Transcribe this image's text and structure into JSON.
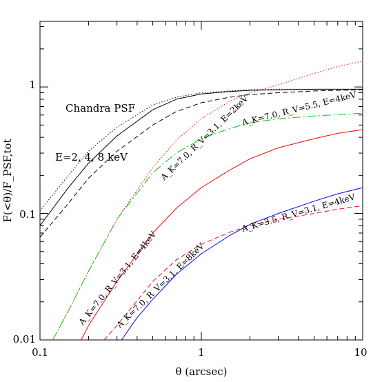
{
  "chart_data": {
    "type": "line",
    "title": "",
    "xlabel": "θ (arcsec)",
    "ylabel": "F(<θ)/F_PSF,tot",
    "xscale": "log",
    "yscale": "log",
    "xlim": [
      0.1,
      10
    ],
    "ylim": [
      0.01,
      3.3
    ],
    "xticks": [
      "0.1",
      "1",
      "10"
    ],
    "yticks": [
      "0.01",
      "0.1",
      "1"
    ],
    "annotations": {
      "psf_title": "Chandra PSF",
      "energies": "E=2, 4, 8 keV",
      "c1": "A_K=7.0, R_V=3.1, E=2keV",
      "c2": "A_K=7.0, R_V=5.5, E=4keV",
      "c3": "A_K=7.0, R_V=3.1, E=4keV",
      "c4": "A_K=7.0, R_V=3.1, E=8keV",
      "c5": "A_K=3.5, R_V=3.1, E=4keV"
    },
    "series": [
      {
        "name": "E=2keV",
        "color": "#000000",
        "dash": "dotted",
        "points": [
          [
            0.1,
            0.105
          ],
          [
            0.15,
            0.2
          ],
          [
            0.2,
            0.31
          ],
          [
            0.3,
            0.48
          ],
          [
            0.5,
            0.72
          ],
          [
            0.7,
            0.83
          ],
          [
            1,
            0.9
          ],
          [
            1.5,
            0.93
          ],
          [
            2,
            0.95
          ],
          [
            3,
            0.96
          ],
          [
            5,
            0.96
          ],
          [
            10,
            0.96
          ]
        ]
      },
      {
        "name": "E=4keV",
        "color": "#000000",
        "dash": "solid",
        "points": [
          [
            0.1,
            0.08
          ],
          [
            0.15,
            0.16
          ],
          [
            0.2,
            0.25
          ],
          [
            0.3,
            0.41
          ],
          [
            0.5,
            0.66
          ],
          [
            0.7,
            0.8
          ],
          [
            1,
            0.88
          ],
          [
            1.5,
            0.92
          ],
          [
            2,
            0.94
          ],
          [
            3,
            0.95
          ],
          [
            5,
            0.96
          ],
          [
            10,
            0.96
          ]
        ]
      },
      {
        "name": "E=8keV",
        "color": "#000000",
        "dash": "dashed",
        "points": [
          [
            0.1,
            0.065
          ],
          [
            0.15,
            0.12
          ],
          [
            0.2,
            0.19
          ],
          [
            0.3,
            0.31
          ],
          [
            0.5,
            0.5
          ],
          [
            0.7,
            0.64
          ],
          [
            1,
            0.75
          ],
          [
            1.5,
            0.83
          ],
          [
            2,
            0.87
          ],
          [
            3,
            0.9
          ],
          [
            5,
            0.93
          ],
          [
            10,
            0.95
          ]
        ]
      },
      {
        "name": "A_K=7.0, R_V=3.1, E=2keV",
        "color": "#ff0000",
        "dash": "dotted",
        "points": [
          [
            0.12,
            0.01
          ],
          [
            0.15,
            0.017
          ],
          [
            0.2,
            0.035
          ],
          [
            0.3,
            0.09
          ],
          [
            0.5,
            0.23
          ],
          [
            0.7,
            0.38
          ],
          [
            1,
            0.56
          ],
          [
            1.5,
            0.77
          ],
          [
            2,
            0.9
          ],
          [
            3,
            1.04
          ],
          [
            5,
            1.28
          ],
          [
            7,
            1.45
          ],
          [
            10,
            1.6
          ]
        ]
      },
      {
        "name": "A_K=7.0, R_V=5.5, E=4keV",
        "color": "#00cc00",
        "dash": "dashdot",
        "points": [
          [
            0.12,
            0.01
          ],
          [
            0.15,
            0.017
          ],
          [
            0.2,
            0.035
          ],
          [
            0.3,
            0.09
          ],
          [
            0.5,
            0.21
          ],
          [
            0.7,
            0.3
          ],
          [
            1,
            0.39
          ],
          [
            1.5,
            0.47
          ],
          [
            2,
            0.52
          ],
          [
            3,
            0.56
          ],
          [
            5,
            0.59
          ],
          [
            10,
            0.62
          ]
        ]
      },
      {
        "name": "A_K=7.0, R_V=3.1, E=4keV",
        "color": "#ff0000",
        "dash": "solid",
        "points": [
          [
            0.18,
            0.01
          ],
          [
            0.2,
            0.013
          ],
          [
            0.3,
            0.029
          ],
          [
            0.5,
            0.07
          ],
          [
            0.7,
            0.11
          ],
          [
            1,
            0.16
          ],
          [
            1.5,
            0.22
          ],
          [
            2,
            0.27
          ],
          [
            3,
            0.33
          ],
          [
            5,
            0.39
          ],
          [
            7,
            0.43
          ],
          [
            10,
            0.46
          ]
        ]
      },
      {
        "name": "A_K=7.0, R_V=3.1, E=8keV",
        "color": "#ff0000",
        "dash": "dashed",
        "points": [
          [
            0.25,
            0.01
          ],
          [
            0.3,
            0.013
          ],
          [
            0.5,
            0.029
          ],
          [
            0.7,
            0.043
          ],
          [
            1,
            0.057
          ],
          [
            1.5,
            0.071
          ],
          [
            2,
            0.08
          ],
          [
            3,
            0.09
          ],
          [
            5,
            0.1
          ],
          [
            7,
            0.108
          ],
          [
            10,
            0.115
          ]
        ]
      },
      {
        "name": "A_K=3.5, R_V=3.1, E=4keV",
        "color": "#0000ff",
        "dash": "solid",
        "points": [
          [
            0.32,
            0.01
          ],
          [
            0.4,
            0.015
          ],
          [
            0.5,
            0.021
          ],
          [
            0.7,
            0.033
          ],
          [
            1,
            0.048
          ],
          [
            1.5,
            0.067
          ],
          [
            2,
            0.082
          ],
          [
            3,
            0.1
          ],
          [
            5,
            0.125
          ],
          [
            7,
            0.143
          ],
          [
            10,
            0.16
          ]
        ]
      }
    ]
  }
}
